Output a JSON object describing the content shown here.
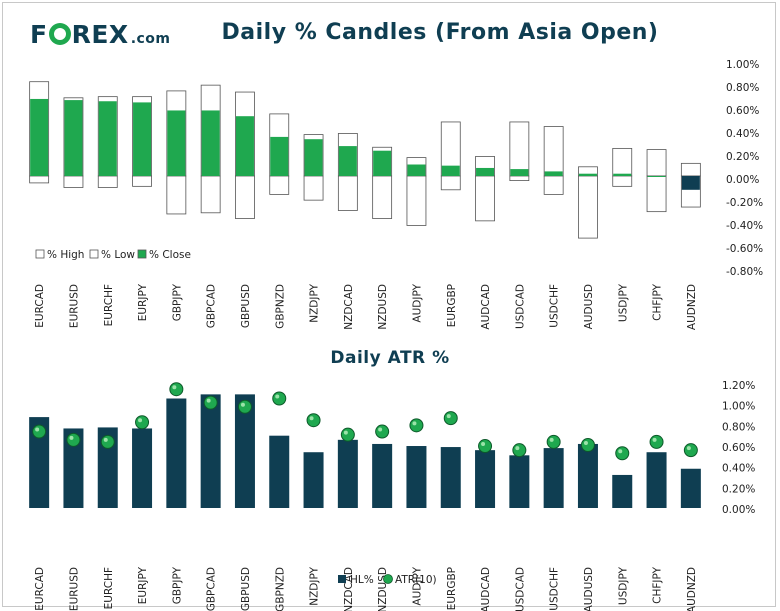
{
  "logo": {
    "main": "F",
    "rest": "REX",
    "suffix": ".com"
  },
  "chart_data": [
    {
      "type": "bar",
      "title": "Daily % Candles (From Asia Open)",
      "categories": [
        "EURCAD",
        "EURUSD",
        "EURCHF",
        "EURJPY",
        "GBPJPY",
        "GBPCAD",
        "GBPUSD",
        "GBPNZD",
        "NZDJPY",
        "NZDCAD",
        "NZDUSD",
        "AUDJPY",
        "EURGBP",
        "AUDCAD",
        "USDCAD",
        "USDCHF",
        "AUDUSD",
        "USDJPY",
        "CHFJPY",
        "AUDNZD"
      ],
      "series": [
        {
          "name": "% High",
          "values": [
            0.82,
            0.68,
            0.69,
            0.69,
            0.74,
            0.79,
            0.73,
            0.54,
            0.36,
            0.37,
            0.25,
            0.16,
            0.47,
            0.17,
            0.47,
            0.43,
            0.08,
            0.24,
            0.23,
            0.11
          ]
        },
        {
          "name": "% Low",
          "values": [
            -0.06,
            -0.1,
            -0.1,
            -0.09,
            -0.33,
            -0.32,
            -0.37,
            -0.16,
            -0.21,
            -0.3,
            -0.37,
            -0.43,
            -0.12,
            -0.39,
            -0.04,
            -0.16,
            -0.54,
            -0.09,
            -0.31,
            -0.27
          ]
        },
        {
          "name": "% Close",
          "values": [
            0.67,
            0.66,
            0.65,
            0.64,
            0.57,
            0.57,
            0.52,
            0.34,
            0.32,
            0.26,
            0.22,
            0.1,
            0.09,
            0.07,
            0.06,
            0.04,
            0.02,
            0.02,
            0.0,
            -0.12
          ]
        }
      ],
      "yticks": [
        "1.00%",
        "0.80%",
        "0.60%",
        "0.40%",
        "0.20%",
        "0.00%",
        "-0.20%",
        "-0.40%",
        "-0.60%",
        "-0.80%"
      ],
      "ylim": [
        -0.8,
        1.0
      ],
      "legend": [
        "% High",
        "% Low",
        "% Close"
      ],
      "colors": {
        "up": "#1fa84f",
        "down": "#0f3e52",
        "box": "#ffffff",
        "edge": "#555555"
      }
    },
    {
      "type": "bar",
      "title": "Daily ATR %",
      "categories": [
        "EURCAD",
        "EURUSD",
        "EURCHF",
        "EURJPY",
        "GBPJPY",
        "GBPCAD",
        "GBPUSD",
        "GBPNZD",
        "NZDJPY",
        "NZDCAD",
        "NZDUSD",
        "AUDJPY",
        "EURGBP",
        "AUDCAD",
        "USDCAD",
        "USDCHF",
        "AUDUSD",
        "USDJPY",
        "CHFJPY",
        "AUDNZD"
      ],
      "series": [
        {
          "name": "HL%",
          "values": [
            0.88,
            0.77,
            0.78,
            0.77,
            1.06,
            1.1,
            1.1,
            0.7,
            0.54,
            0.66,
            0.62,
            0.6,
            0.59,
            0.56,
            0.51,
            0.58,
            0.62,
            0.32,
            0.54,
            0.38
          ]
        },
        {
          "name": "ATR(10)",
          "values": [
            0.74,
            0.66,
            0.64,
            0.83,
            1.15,
            1.02,
            0.98,
            1.06,
            0.85,
            0.71,
            0.74,
            0.8,
            0.87,
            0.6,
            0.56,
            0.64,
            0.61,
            0.53,
            0.64,
            0.56
          ]
        }
      ],
      "yticks": [
        "1.20%",
        "1.00%",
        "0.80%",
        "0.60%",
        "0.40%",
        "0.20%",
        "0.00%"
      ],
      "ylim": [
        0,
        1.2
      ],
      "legend": [
        "HL%",
        "ATR(10)"
      ],
      "colors": {
        "bar": "#0f3e52",
        "marker": "#1fa84f"
      }
    }
  ]
}
